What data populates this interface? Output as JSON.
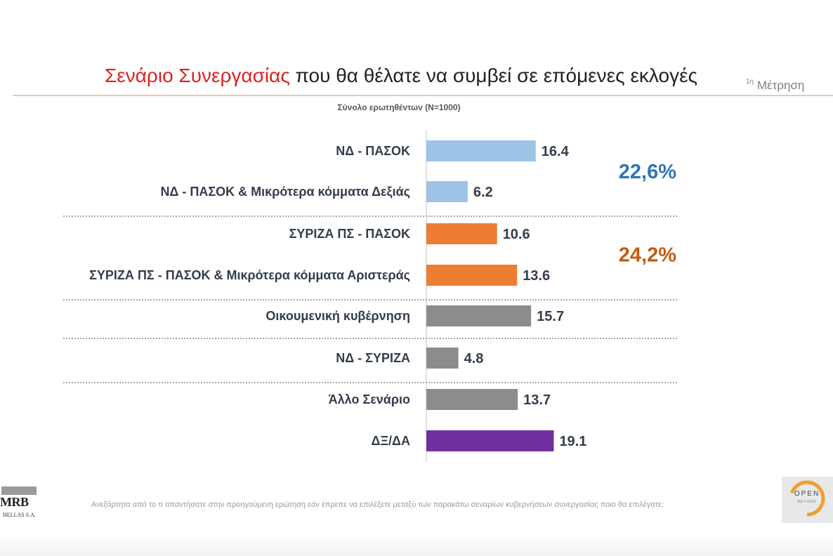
{
  "header": {
    "title_highlight": "Σενάριο Συνεργασίας",
    "title_rest": " που θα θέλατε να συμβεί σε επόμενες εκλογές",
    "measure_sup": "1η",
    "measure_label": "Μέτρηση",
    "subtitle": "Σύνολο ερωτηθέντων (Ν=1000)"
  },
  "chart_data": {
    "type": "bar",
    "orientation": "horizontal",
    "categories": [
      "ΝΔ - ΠΑΣΟΚ",
      "ΝΔ - ΠΑΣΟΚ & Μικρότερα κόμματα Δεξιάς",
      "ΣΥΡΙΖΑ ΠΣ - ΠΑΣΟΚ",
      "ΣΥΡΙΖΑ ΠΣ - ΠΑΣΟΚ & Μικρότερα κόμματα Αριστεράς",
      "Οικουμενική κυβέρνηση",
      "ΝΔ - ΣΥΡΙΖΑ",
      "Άλλο Σενάριο",
      "ΔΞ/ΔΑ"
    ],
    "values": [
      16.4,
      6.2,
      10.6,
      13.6,
      15.7,
      4.8,
      13.7,
      19.1
    ],
    "value_labels": [
      "16.4",
      "6.2",
      "10.6",
      "13.6",
      "15.7",
      "4.8",
      "13.7",
      "19.1"
    ],
    "bar_colors": [
      "#9dc3e6",
      "#9dc3e6",
      "#ed7d31",
      "#ed7d31",
      "#8c8c8c",
      "#8c8c8c",
      "#8c8c8c",
      "#7030a0"
    ],
    "xlim": [
      0,
      20
    ],
    "grid": false,
    "groups": [
      {
        "label": "22,6%",
        "color": "#2e75b6",
        "members": [
          0,
          1
        ]
      },
      {
        "label": "24,2%",
        "color": "#c55a11",
        "members": [
          2,
          3
        ]
      }
    ],
    "dividers_after": [
      1,
      3,
      4,
      5
    ]
  },
  "footer": {
    "note": "Ανεξάρτητα από το τι απαντήσατε στην προηγούμενη ερώτηση εάν έπρεπε να επιλέξετε μεταξύ των παρακάτω σεναρίων κυβερνήσεων συνεργασίας ποιο θα επιλέγατε;",
    "logo_left_main": "MRB",
    "logo_left_sub": "HELLAS S.A.",
    "logo_right_main": "OPEN",
    "logo_right_sub": "BEYOND"
  }
}
